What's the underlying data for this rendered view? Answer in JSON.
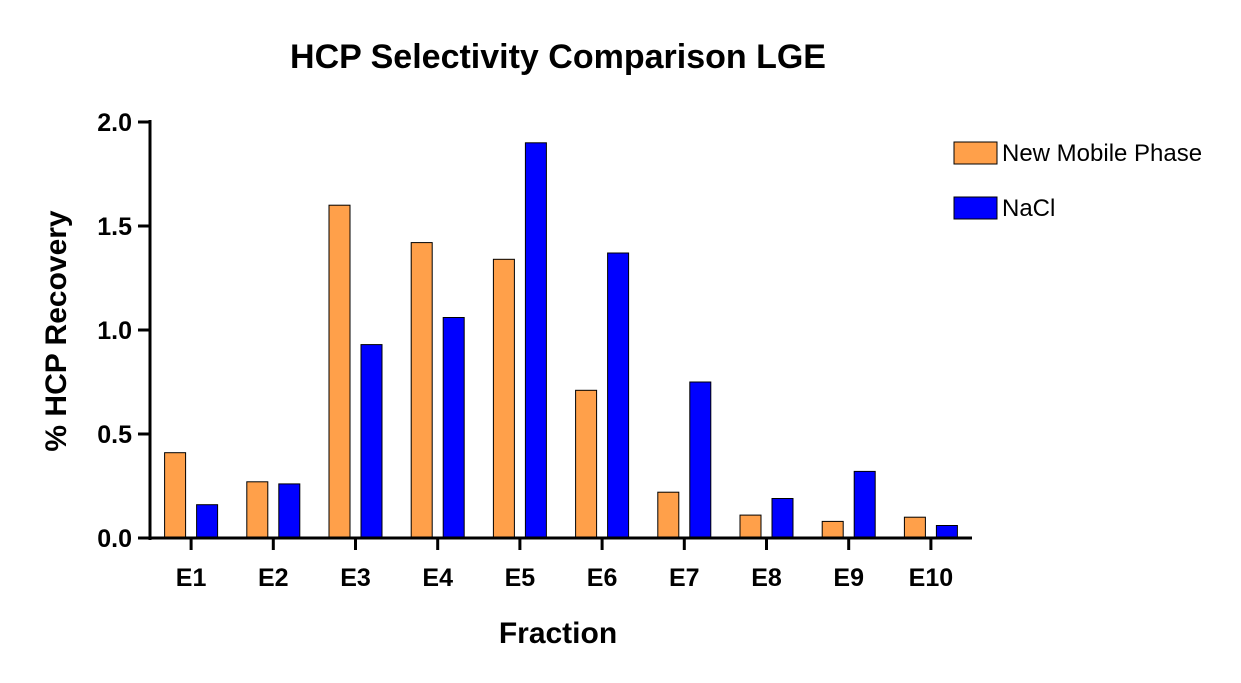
{
  "chart_data": {
    "type": "bar",
    "title": "HCP Selectivity Comparison LGE",
    "xlabel": "Fraction",
    "ylabel": "% HCP Recovery",
    "categories": [
      "E1",
      "E2",
      "E3",
      "E4",
      "E5",
      "E6",
      "E7",
      "E8",
      "E9",
      "E10"
    ],
    "series": [
      {
        "name": "New Mobile Phase",
        "color": "#FFA04A",
        "values": [
          0.41,
          0.27,
          1.6,
          1.42,
          1.34,
          0.71,
          0.22,
          0.11,
          0.08,
          0.1
        ]
      },
      {
        "name": "NaCl",
        "color": "#0000FF",
        "values": [
          0.16,
          0.26,
          0.93,
          1.06,
          1.9,
          1.37,
          0.75,
          0.19,
          0.32,
          0.06
        ]
      }
    ],
    "ylim": [
      0,
      2.0
    ],
    "yticks": [
      0.0,
      0.5,
      1.0,
      1.5,
      2.0
    ],
    "ytick_labels": [
      "0.0",
      "0.5",
      "1.0",
      "1.5",
      "2.0"
    ],
    "grid": false,
    "legend_position": "top-right"
  }
}
